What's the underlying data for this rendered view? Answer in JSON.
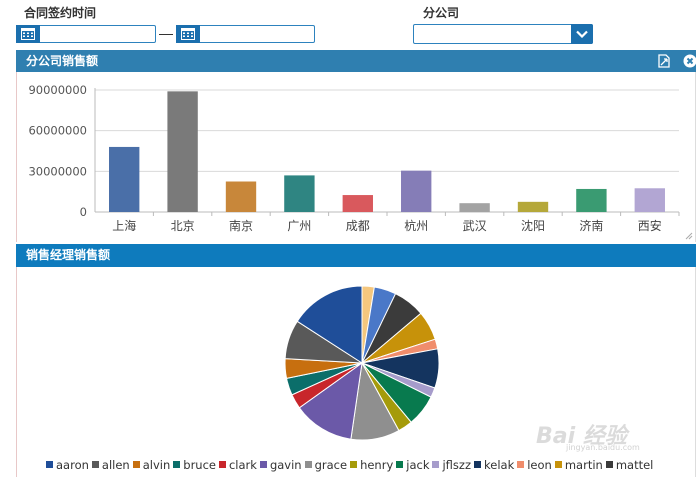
{
  "filters": {
    "contract_date_label": "合同签约时间",
    "branch_label": "分公司",
    "date_from": "",
    "date_to": "",
    "branch_value": ""
  },
  "colors": {
    "header_blue": "#2f7fb0",
    "header_blue_dark": "#0e7bbd",
    "input_border": "#2d82be",
    "button_blue": "#1b6fae"
  },
  "panels": {
    "branch_sales_title": "分公司销售额",
    "manager_sales_title": "销售经理销售额"
  },
  "watermark": {
    "text": "Bai 经验",
    "sub": "jingyan.baidu.com"
  },
  "chart_data": [
    {
      "type": "bar",
      "categories": [
        "上海",
        "北京",
        "南京",
        "广州",
        "成都",
        "杭州",
        "武汉",
        "沈阳",
        "济南",
        "西安"
      ],
      "values": [
        48000000,
        89000000,
        22500000,
        27000000,
        12500000,
        30500000,
        6500000,
        7500000,
        17000000,
        17500000
      ],
      "colors": [
        "#4a6fa8",
        "#7a7a7a",
        "#c8873a",
        "#2f8582",
        "#d9595d",
        "#857db7",
        "#a3a3a3",
        "#b5a83a",
        "#3a9b72",
        "#b2a6d3"
      ],
      "ylim": [
        0,
        90000000
      ],
      "yticks": [
        "0",
        "30000000",
        "60000000",
        "90000000"
      ],
      "grid": true
    },
    {
      "type": "pie",
      "labels": [
        "aaron",
        "allen",
        "alvin",
        "bruce",
        "clark",
        "gavin",
        "grace",
        "henry",
        "jack",
        "jflszz",
        "kelak",
        "leon",
        "martin",
        "mattel"
      ],
      "legend_colors": [
        "#1f4e99",
        "#595959",
        "#c76f0f",
        "#0b6e6a",
        "#c8262b",
        "#6b59a8",
        "#8f8f8f",
        "#a59b0a",
        "#087a4e",
        "#a69ccb",
        "#14345f",
        "#f08d6c",
        "#c7920a",
        "#3b3b3b"
      ],
      "slices": [
        {
          "label": "",
          "value": 2.5,
          "color": "#f5c77e"
        },
        {
          "label": "",
          "value": 4.5,
          "color": "#4a78c8"
        },
        {
          "label": "",
          "value": 6.5,
          "color": "#3b3b3b"
        },
        {
          "label": "",
          "value": 6.0,
          "color": "#c7920a"
        },
        {
          "label": "",
          "value": 2.0,
          "color": "#f08d6c"
        },
        {
          "label": "",
          "value": 8.0,
          "color": "#14345f"
        },
        {
          "label": "",
          "value": 2.0,
          "color": "#a69ccb"
        },
        {
          "label": "",
          "value": 6.5,
          "color": "#087a4e"
        },
        {
          "label": "",
          "value": 3.0,
          "color": "#a59b0a"
        },
        {
          "label": "",
          "value": 10.0,
          "color": "#8f8f8f"
        },
        {
          "label": "",
          "value": 12.5,
          "color": "#6b59a8"
        },
        {
          "label": "",
          "value": 3.0,
          "color": "#c8262b"
        },
        {
          "label": "",
          "value": 3.5,
          "color": "#0b6e6a"
        },
        {
          "label": "",
          "value": 4.0,
          "color": "#c76f0f"
        },
        {
          "label": "",
          "value": 8.0,
          "color": "#595959"
        },
        {
          "label": "",
          "value": 15.5,
          "color": "#1f4e99"
        }
      ]
    }
  ]
}
